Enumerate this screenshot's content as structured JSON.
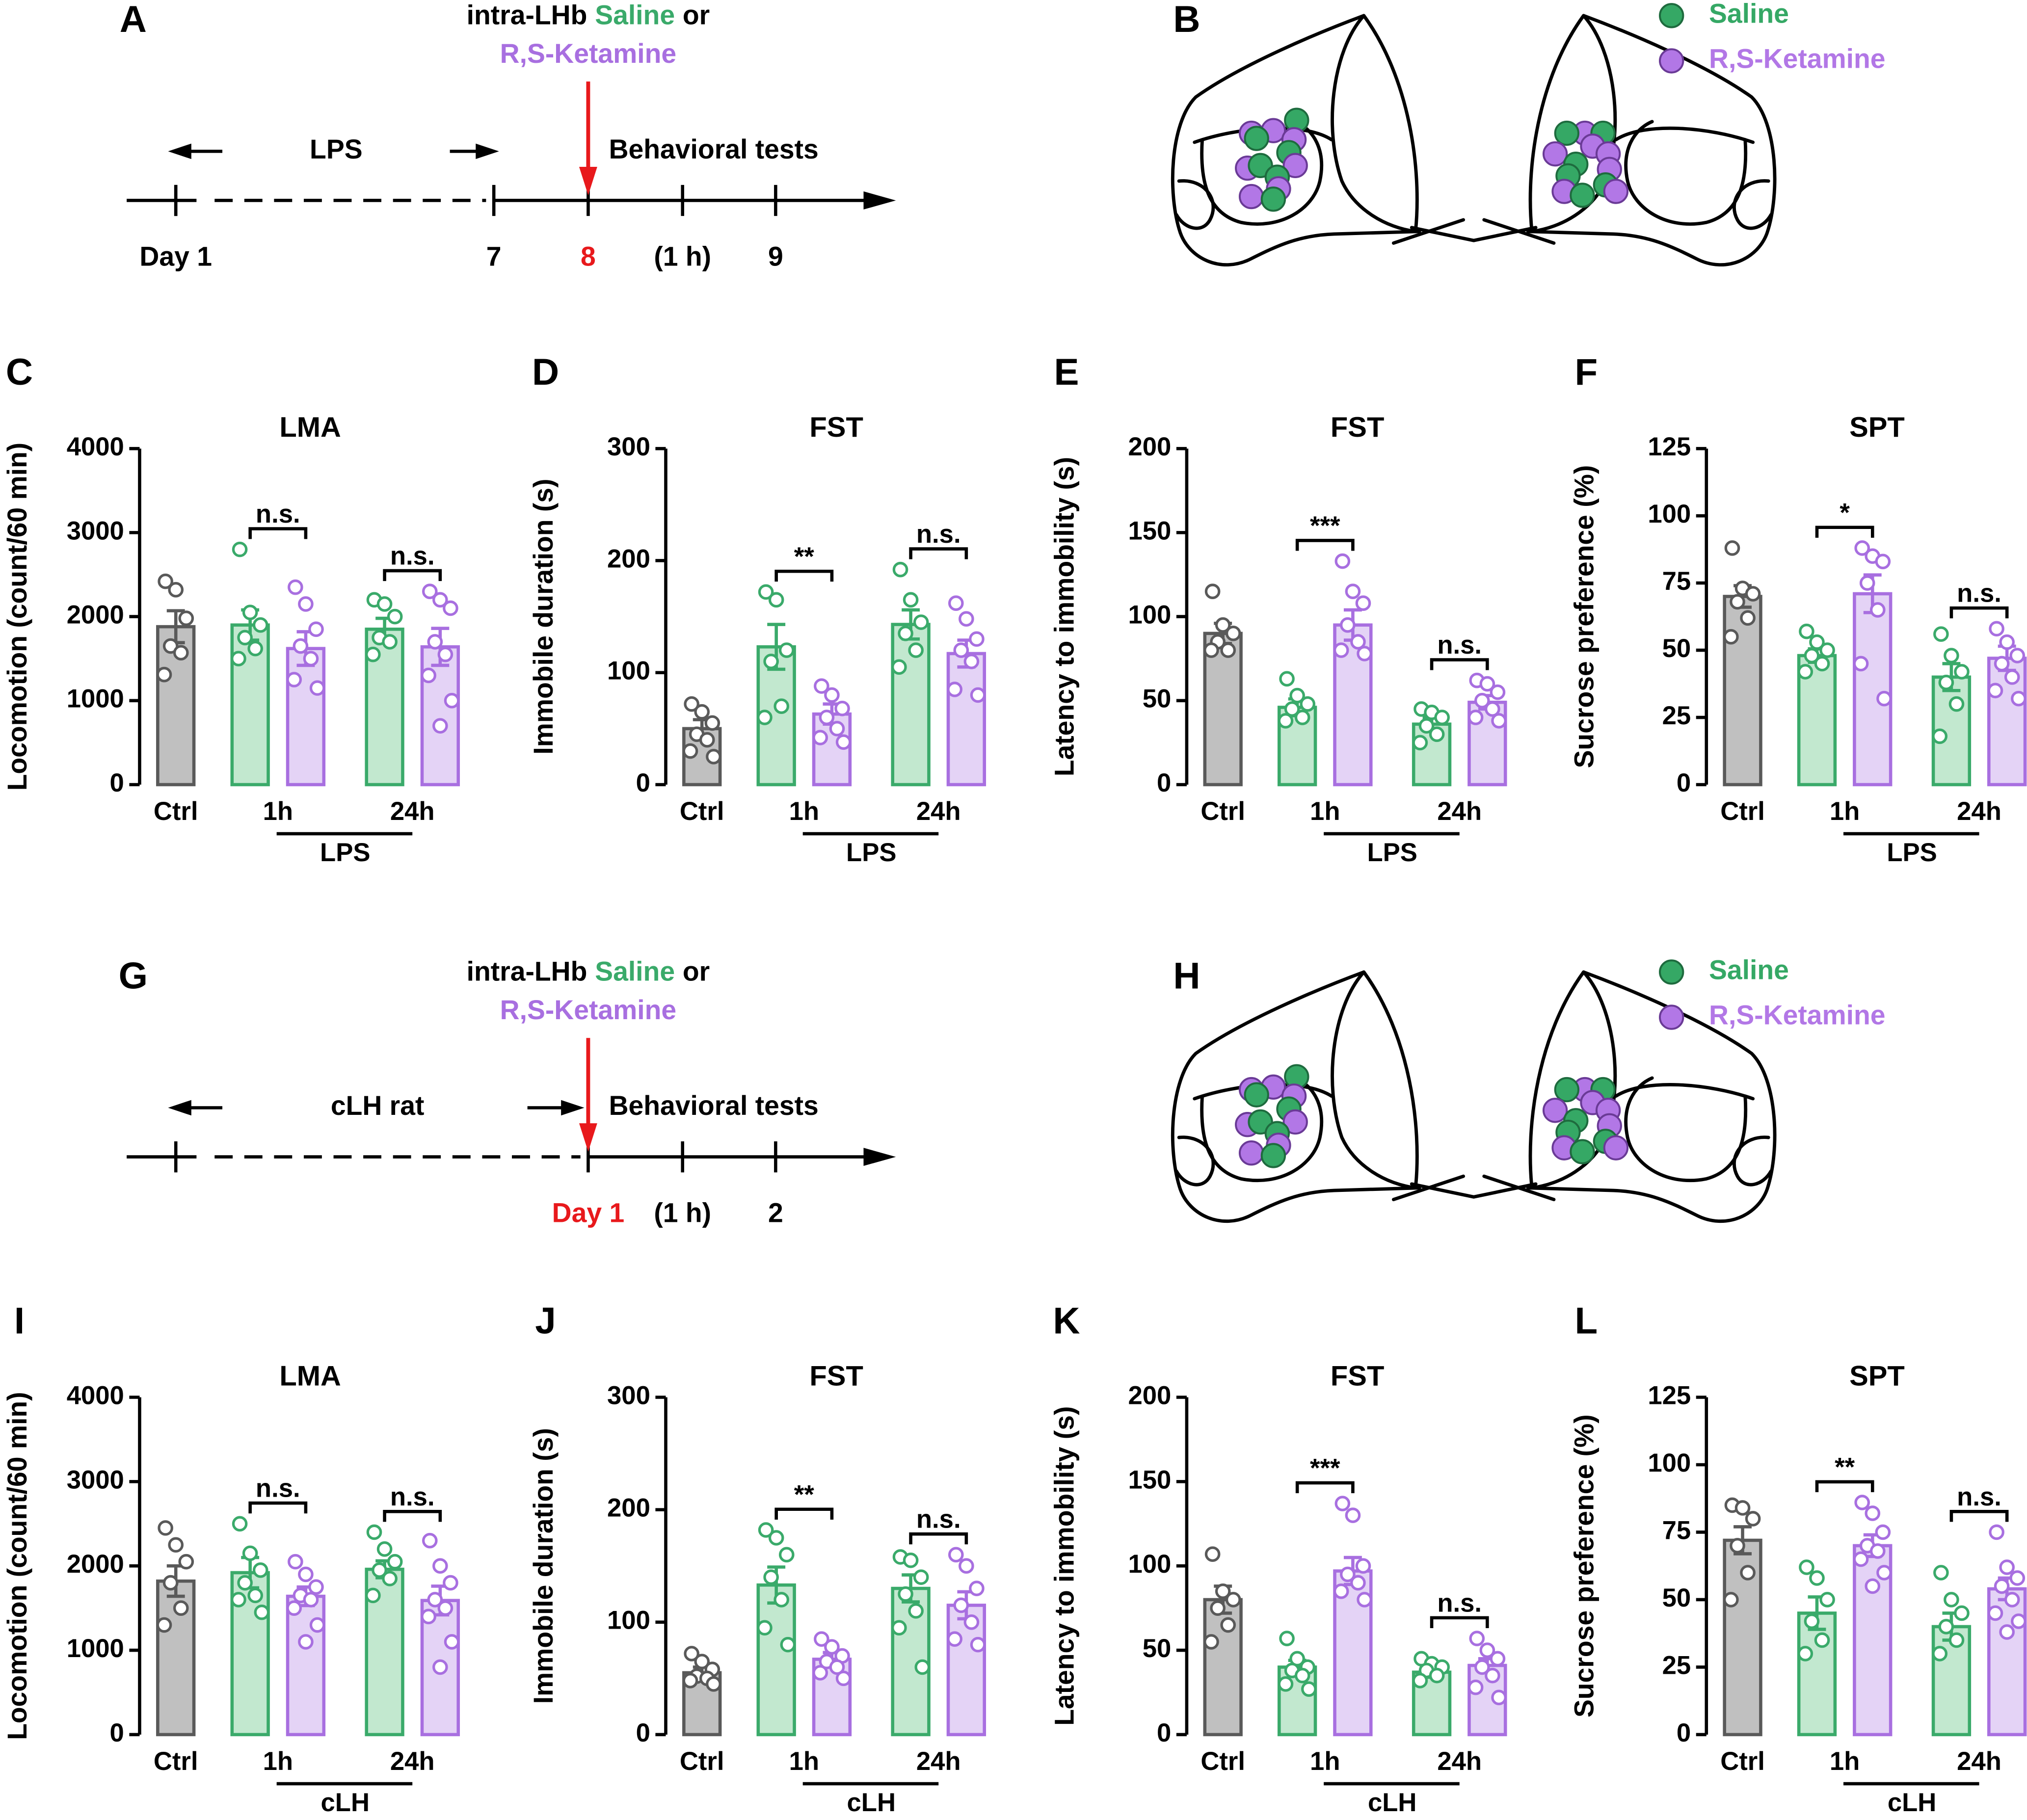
{
  "timelines": [
    {
      "panel": "A",
      "header": {
        "lead": "intra-LHb",
        "saline": "Saline",
        "joiner": "or",
        "drug": "R,S-Ketamine"
      },
      "phase": "LPS",
      "tests": "Behavioral tests",
      "ticks": [
        "Day 1",
        "7",
        "8",
        "(1 h)",
        "9"
      ],
      "tick_colors": [
        "#000000",
        "#000000",
        "#e8191c",
        "#000000",
        "#000000"
      ]
    },
    {
      "panel": "G",
      "header": {
        "lead": "intra-LHb",
        "saline": "Saline",
        "joiner": "or",
        "drug": "R,S-Ketamine"
      },
      "phase": "cLH rat",
      "tests": "Behavioral tests",
      "ticks": [
        "Day 1",
        "(1 h)",
        "2"
      ],
      "tick_colors": [
        "#e8191c",
        "#000000",
        "#000000"
      ]
    }
  ],
  "brain_maps": [
    {
      "panel": "B",
      "legend": [
        {
          "name": "Saline",
          "color": "#35a865"
        },
        {
          "name": "R,S-Ketamine",
          "color": "#b277e6"
        }
      ]
    },
    {
      "panel": "H",
      "legend": [
        {
          "name": "Saline",
          "color": "#35a865"
        },
        {
          "name": "R,S-Ketamine",
          "color": "#b277e6"
        }
      ]
    }
  ],
  "chart_data": [
    {
      "type": "bar",
      "panel": "C",
      "title": "LMA",
      "y_label": "Locomotion (count/60 min)",
      "ylim": [
        0,
        4000
      ],
      "yticks": [
        0,
        1000,
        2000,
        3000,
        4000
      ],
      "categories": [
        "Ctrl",
        "1h",
        "24h"
      ],
      "group_label": "LPS",
      "annotations": [
        null,
        "n.s.",
        "n.s."
      ],
      "series": [
        {
          "color": "#595959",
          "fill": "#c0c0c0",
          "values": [
            1880,
            null,
            null
          ],
          "errors": [
            190,
            null,
            null
          ],
          "points": [
            [
              2420,
              2320,
              1980,
              1650,
              1570,
              1310
            ],
            null,
            null
          ]
        },
        {
          "color": "#3aaa6a",
          "fill": "#c2e8cf",
          "values": [
            null,
            1900,
            1850
          ],
          "errors": [
            null,
            180,
            130
          ],
          "points": [
            null,
            [
              2800,
              2050,
              1900,
              1750,
              1620,
              1500
            ],
            [
              2200,
              2150,
              2000,
              1750,
              1700,
              1550
            ]
          ]
        },
        {
          "color": "#a86fe0",
          "fill": "#e4d3f6",
          "values": [
            null,
            1620,
            1640
          ],
          "errors": [
            null,
            200,
            220
          ],
          "points": [
            null,
            [
              2350,
              2150,
              1850,
              1650,
              1500,
              1250,
              1150
            ],
            [
              2300,
              2200,
              2100,
              1700,
              1550,
              1300,
              1000,
              700
            ]
          ]
        }
      ]
    },
    {
      "type": "bar",
      "panel": "D",
      "title": "FST",
      "y_label": "Immobile duration (s)",
      "ylim": [
        0,
        300
      ],
      "yticks": [
        0,
        100,
        200,
        300
      ],
      "categories": [
        "Ctrl",
        "1h",
        "24h"
      ],
      "group_label": "LPS",
      "annotations": [
        null,
        "**",
        "n.s."
      ],
      "series": [
        {
          "color": "#595959",
          "fill": "#c0c0c0",
          "values": [
            50,
            null,
            null
          ],
          "errors": [
            8,
            null,
            null
          ],
          "points": [
            [
              72,
              65,
              55,
              45,
              40,
              30,
              25
            ],
            null,
            null
          ]
        },
        {
          "color": "#3aaa6a",
          "fill": "#c2e8cf",
          "values": [
            null,
            123,
            143
          ],
          "errors": [
            null,
            20,
            13
          ],
          "points": [
            null,
            [
              172,
              165,
              120,
              110,
              70,
              60
            ],
            [
              192,
              165,
              145,
              135,
              120,
              105
            ]
          ]
        },
        {
          "color": "#a86fe0",
          "fill": "#e4d3f6",
          "values": [
            null,
            63,
            117
          ],
          "errors": [
            null,
            9,
            12
          ],
          "points": [
            null,
            [
              88,
              80,
              68,
              60,
              50,
              42,
              38
            ],
            [
              162,
              148,
              130,
              120,
              110,
              85,
              80
            ]
          ]
        }
      ]
    },
    {
      "type": "bar",
      "panel": "E",
      "title": "FST",
      "y_label": "Latency to immobility (s)",
      "ylim": [
        0,
        200
      ],
      "yticks": [
        0,
        50,
        100,
        150,
        200
      ],
      "categories": [
        "Ctrl",
        "1h",
        "24h"
      ],
      "group_label": "LPS",
      "annotations": [
        null,
        "***",
        "n.s."
      ],
      "series": [
        {
          "color": "#595959",
          "fill": "#c0c0c0",
          "values": [
            90,
            null,
            null
          ],
          "errors": [
            6,
            null,
            null
          ],
          "points": [
            [
              115,
              95,
              90,
              85,
              80,
              80
            ],
            null,
            null
          ]
        },
        {
          "color": "#3aaa6a",
          "fill": "#c2e8cf",
          "values": [
            null,
            46,
            36
          ],
          "errors": [
            null,
            5,
            4
          ],
          "points": [
            null,
            [
              63,
              53,
              48,
              45,
              40,
              38
            ],
            [
              45,
              43,
              40,
              35,
              30,
              25
            ]
          ]
        },
        {
          "color": "#a86fe0",
          "fill": "#e4d3f6",
          "values": [
            null,
            95,
            49
          ],
          "errors": [
            null,
            9,
            4
          ],
          "points": [
            null,
            [
              133,
              115,
              108,
              95,
              85,
              80,
              78
            ],
            [
              62,
              60,
              55,
              50,
              45,
              40,
              38
            ]
          ]
        }
      ]
    },
    {
      "type": "bar",
      "panel": "F",
      "title": "SPT",
      "y_label": "Sucrose preference (%)",
      "ylim": [
        0,
        125
      ],
      "yticks": [
        0,
        25,
        50,
        75,
        100,
        125
      ],
      "categories": [
        "Ctrl",
        "1h",
        "24h"
      ],
      "group_label": "LPS",
      "annotations": [
        null,
        "*",
        "n.s."
      ],
      "series": [
        {
          "color": "#595959",
          "fill": "#c0c0c0",
          "values": [
            70,
            null,
            null
          ],
          "errors": [
            4,
            null,
            null
          ],
          "points": [
            [
              88,
              73,
              71,
              68,
              62,
              55
            ],
            null,
            null
          ]
        },
        {
          "color": "#3aaa6a",
          "fill": "#c2e8cf",
          "values": [
            null,
            48,
            40
          ],
          "errors": [
            null,
            2.5,
            5
          ],
          "points": [
            null,
            [
              57,
              53,
              50,
              48,
              45,
              42
            ],
            [
              56,
              48,
              42,
              38,
              30,
              18
            ]
          ]
        },
        {
          "color": "#a86fe0",
          "fill": "#e4d3f6",
          "values": [
            null,
            71,
            47
          ],
          "errors": [
            null,
            7,
            4.5
          ],
          "points": [
            null,
            [
              88,
              85,
              83,
              75,
              65,
              45,
              32
            ],
            [
              58,
              53,
              48,
              45,
              40,
              35,
              32
            ]
          ]
        }
      ]
    },
    {
      "type": "bar",
      "panel": "I",
      "title": "LMA",
      "y_label": "Locomotion (count/60 min)",
      "ylim": [
        0,
        4000
      ],
      "yticks": [
        0,
        1000,
        2000,
        3000,
        4000
      ],
      "categories": [
        "Ctrl",
        "1h",
        "24h"
      ],
      "group_label": "cLH",
      "annotations": [
        null,
        "n.s.",
        "n.s."
      ],
      "series": [
        {
          "color": "#595959",
          "fill": "#c0c0c0",
          "values": [
            1820,
            null,
            null
          ],
          "errors": [
            180,
            null,
            null
          ],
          "points": [
            [
              2450,
              2250,
              2050,
              1800,
              1500,
              1300
            ],
            null,
            null
          ]
        },
        {
          "color": "#3aaa6a",
          "fill": "#c2e8cf",
          "values": [
            null,
            1920,
            1960
          ],
          "errors": [
            null,
            180,
            100
          ],
          "points": [
            null,
            [
              2500,
              2150,
              1950,
              1800,
              1650,
              1600,
              1450
            ],
            [
              2400,
              2200,
              2050,
              1950,
              1850,
              1650
            ]
          ]
        },
        {
          "color": "#a86fe0",
          "fill": "#e4d3f6",
          "values": [
            null,
            1640,
            1590
          ],
          "errors": [
            null,
            110,
            170
          ],
          "points": [
            null,
            [
              2050,
              1900,
              1750,
              1650,
              1600,
              1500,
              1300,
              1100
            ],
            [
              2300,
              2000,
              1800,
              1600,
              1500,
              1400,
              1100,
              800
            ]
          ]
        }
      ]
    },
    {
      "type": "bar",
      "panel": "J",
      "title": "FST",
      "y_label": "Immobile duration (s)",
      "ylim": [
        0,
        300
      ],
      "yticks": [
        0,
        100,
        200,
        300
      ],
      "categories": [
        "Ctrl",
        "1h",
        "24h"
      ],
      "group_label": "cLH",
      "annotations": [
        null,
        "**",
        "n.s."
      ],
      "series": [
        {
          "color": "#595959",
          "fill": "#c0c0c0",
          "values": [
            55,
            null,
            null
          ],
          "errors": [
            5,
            null,
            null
          ],
          "points": [
            [
              72,
              65,
              58,
              52,
              50,
              48,
              45
            ],
            null,
            null
          ]
        },
        {
          "color": "#3aaa6a",
          "fill": "#c2e8cf",
          "values": [
            null,
            133,
            130
          ],
          "errors": [
            null,
            16,
            12
          ],
          "points": [
            null,
            [
              182,
              175,
              160,
              140,
              120,
              95,
              80
            ],
            [
              158,
              155,
              140,
              125,
              110,
              95,
              60
            ]
          ]
        },
        {
          "color": "#a86fe0",
          "fill": "#e4d3f6",
          "values": [
            null,
            67,
            115
          ],
          "errors": [
            null,
            6,
            12
          ],
          "points": [
            null,
            [
              85,
              78,
              70,
              65,
              60,
              55,
              50
            ],
            [
              160,
              150,
              130,
              115,
              100,
              85,
              80
            ]
          ]
        }
      ]
    },
    {
      "type": "bar",
      "panel": "K",
      "title": "FST",
      "y_label": "Latency to immobility (s)",
      "ylim": [
        0,
        200
      ],
      "yticks": [
        0,
        50,
        100,
        150,
        200
      ],
      "categories": [
        "Ctrl",
        "1h",
        "24h"
      ],
      "group_label": "cLH",
      "annotations": [
        null,
        "***",
        "n.s."
      ],
      "series": [
        {
          "color": "#595959",
          "fill": "#c0c0c0",
          "values": [
            80,
            null,
            null
          ],
          "errors": [
            8,
            null,
            null
          ],
          "points": [
            [
              107,
              85,
              80,
              75,
              65,
              55
            ],
            null,
            null
          ]
        },
        {
          "color": "#3aaa6a",
          "fill": "#c2e8cf",
          "values": [
            null,
            40,
            37
          ],
          "errors": [
            null,
            4,
            3
          ],
          "points": [
            null,
            [
              57,
              45,
              40,
              38,
              35,
              30,
              27
            ],
            [
              45,
              42,
              40,
              38,
              35,
              32
            ]
          ]
        },
        {
          "color": "#a86fe0",
          "fill": "#e4d3f6",
          "values": [
            null,
            97,
            41
          ],
          "errors": [
            null,
            8,
            4
          ],
          "points": [
            null,
            [
              137,
              130,
              100,
              95,
              90,
              85,
              80
            ],
            [
              57,
              50,
              45,
              40,
              35,
              28,
              22
            ]
          ]
        }
      ]
    },
    {
      "type": "bar",
      "panel": "L",
      "title": "SPT",
      "y_label": "Sucrose preference (%)",
      "ylim": [
        0,
        125
      ],
      "yticks": [
        0,
        25,
        50,
        75,
        100,
        125
      ],
      "categories": [
        "Ctrl",
        "1h",
        "24h"
      ],
      "group_label": "cLH",
      "annotations": [
        null,
        "**",
        "n.s."
      ],
      "series": [
        {
          "color": "#595959",
          "fill": "#c0c0c0",
          "values": [
            72,
            null,
            null
          ],
          "errors": [
            5,
            null,
            null
          ],
          "points": [
            [
              85,
              84,
              80,
              70,
              60,
              50
            ],
            null,
            null
          ]
        },
        {
          "color": "#3aaa6a",
          "fill": "#c2e8cf",
          "values": [
            null,
            45,
            40
          ],
          "errors": [
            null,
            6,
            5
          ],
          "points": [
            null,
            [
              62,
              58,
              50,
              42,
              35,
              30
            ],
            [
              60,
              50,
              45,
              40,
              35,
              30
            ]
          ]
        },
        {
          "color": "#a86fe0",
          "fill": "#e4d3f6",
          "values": [
            null,
            70,
            54
          ],
          "errors": [
            null,
            4,
            4
          ],
          "points": [
            null,
            [
              86,
              82,
              75,
              70,
              68,
              65,
              60,
              55
            ],
            [
              75,
              62,
              58,
              55,
              50,
              45,
              42,
              38
            ]
          ]
        }
      ]
    }
  ]
}
